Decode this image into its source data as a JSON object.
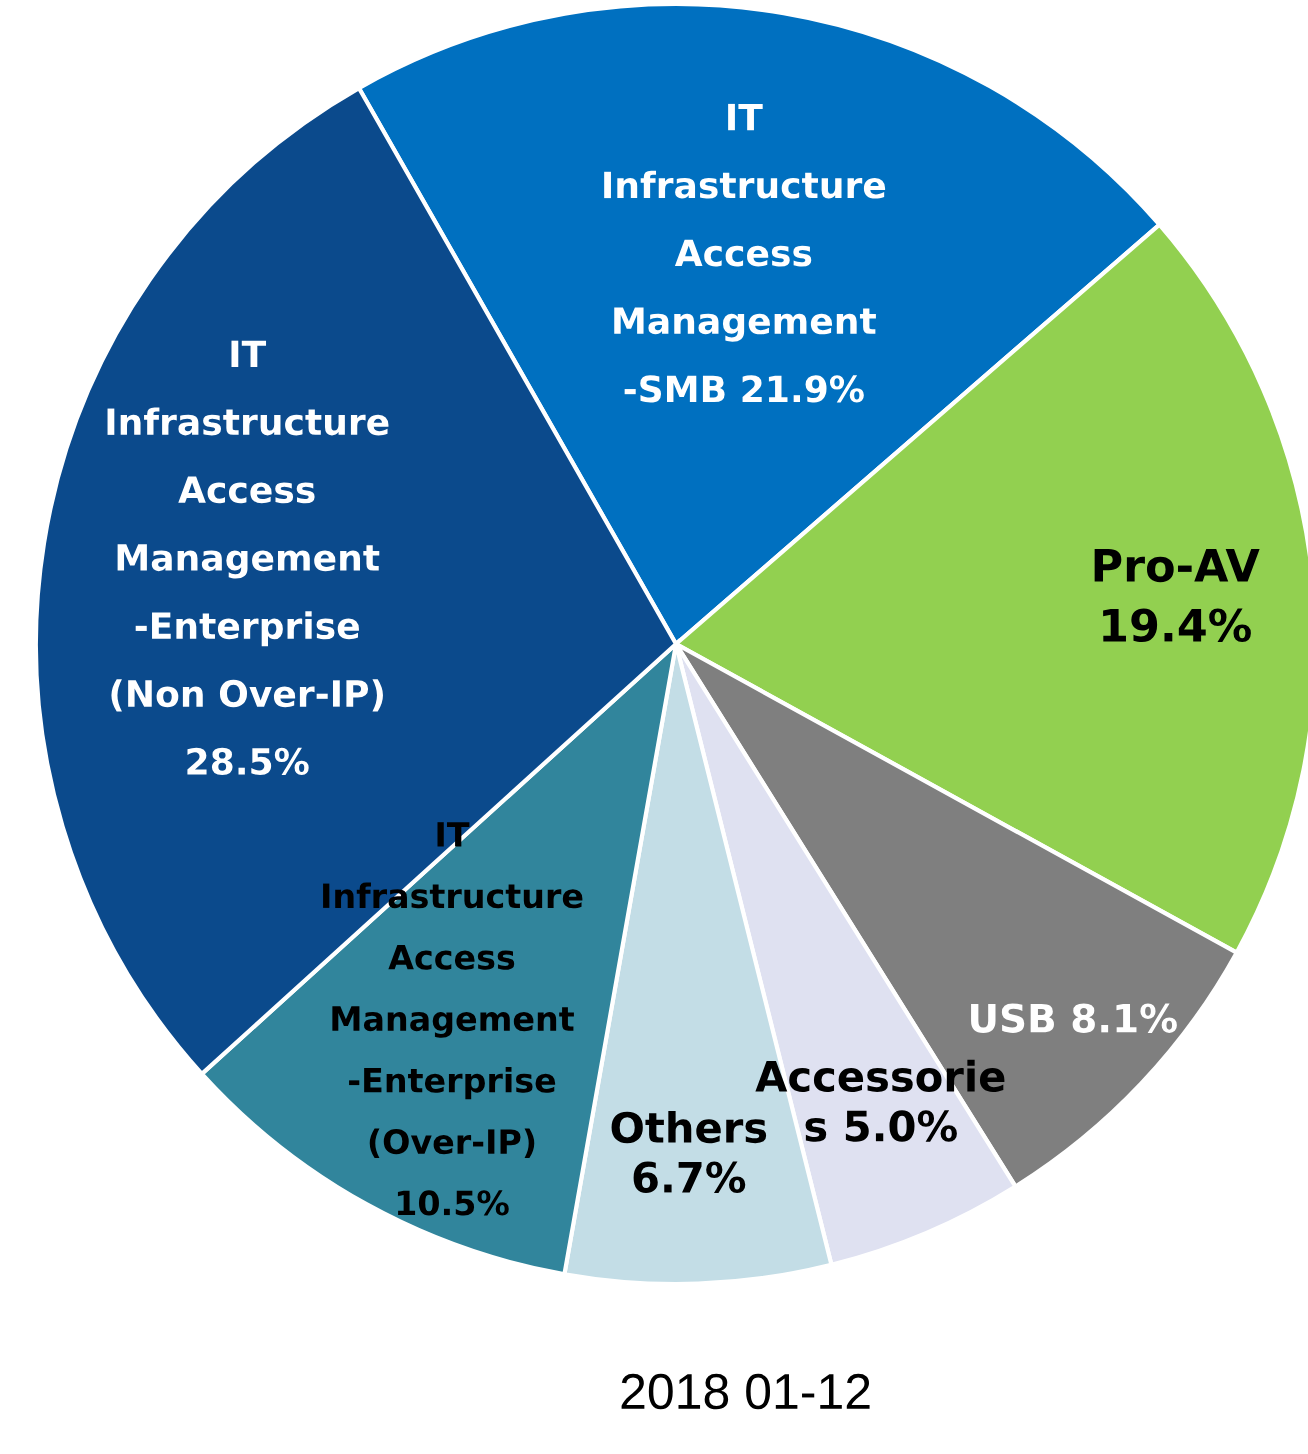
{
  "chart_data": {
    "type": "pie",
    "title": "2018 01-12",
    "categories": [
      "IT\nInfrastructure\nAccess\nManagement\n-SMB",
      "Pro-AV",
      "USB",
      "Accessorie\ns",
      "Others",
      "IT\nInfrastructure\nAccess\nManagement\n-Enterprise\n(Over-IP)",
      "IT\nInfrastructure\nAccess\nManagement\n-Enterprise\n(Non Over-IP)"
    ],
    "values": [
      21.9,
      19.4,
      8.1,
      5.0,
      6.7,
      10.5,
      28.5
    ],
    "value_labels": [
      "21.9%",
      "19.4%",
      "8.1%",
      "5.0%",
      "6.7%",
      "10.5%",
      "28.5%"
    ],
    "colors": [
      "#0070c0",
      "#92d050",
      "#7f7f7f",
      "#dfe1f1",
      "#c3dde6",
      "#31859c",
      "#0b4a8c"
    ]
  }
}
